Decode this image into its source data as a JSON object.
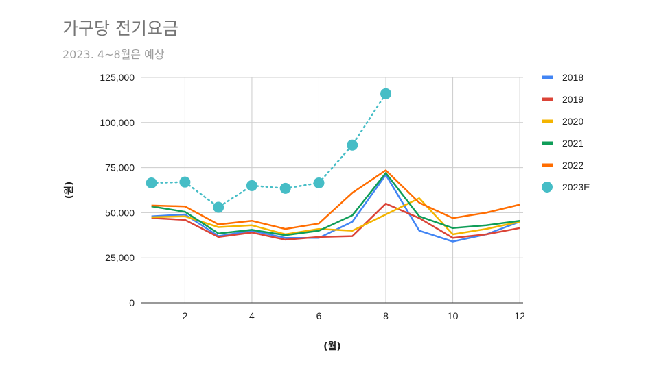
{
  "chart_data": {
    "type": "line",
    "title": "가구당 전기요금",
    "subtitle": "2023. 4~8월은 예상",
    "xlabel": "(월)",
    "ylabel": "(원)",
    "x": [
      1,
      2,
      3,
      4,
      5,
      6,
      7,
      8,
      9,
      10,
      11,
      12
    ],
    "xticks": [
      "2",
      "4",
      "6",
      "8",
      "10",
      "12"
    ],
    "xtick_values": [
      2,
      4,
      6,
      8,
      10,
      12
    ],
    "yticks": [
      "0",
      "25,000",
      "50,000",
      "75,000",
      "100,000",
      "125,000"
    ],
    "ytick_values": [
      0,
      25000,
      50000,
      75000,
      100000,
      125000
    ],
    "xlim": [
      0.7,
      12.1
    ],
    "ylim": [
      0,
      125000
    ],
    "grid": true,
    "legend": "right",
    "series": [
      {
        "name": "2018",
        "color": "#4285f4",
        "style": "line",
        "values": [
          48000,
          49000,
          37000,
          40000,
          36000,
          36000,
          45000,
          71000,
          40000,
          34000,
          38000,
          45000
        ]
      },
      {
        "name": "2019",
        "color": "#db4437",
        "style": "line",
        "values": [
          47000,
          46000,
          36500,
          39000,
          35000,
          36500,
          37000,
          55000,
          47000,
          36000,
          38000,
          41500
        ]
      },
      {
        "name": "2020",
        "color": "#f4b400",
        "style": "line",
        "values": [
          47500,
          48000,
          42000,
          43000,
          38000,
          41000,
          40000,
          49000,
          58000,
          38000,
          41000,
          45000
        ]
      },
      {
        "name": "2021",
        "color": "#0f9d58",
        "style": "line",
        "values": [
          53500,
          50500,
          38500,
          40500,
          37500,
          40000,
          48500,
          72000,
          48000,
          41500,
          43000,
          45500
        ]
      },
      {
        "name": "2022",
        "color": "#ff6d01",
        "style": "line",
        "values": [
          54000,
          53500,
          43500,
          45500,
          41000,
          44000,
          61000,
          73500,
          55500,
          47000,
          50000,
          54500
        ]
      },
      {
        "name": "2023E",
        "color": "#46bdc6",
        "style": "dotted-points",
        "x": [
          1,
          2,
          3,
          4,
          5,
          6,
          7,
          8
        ],
        "values": [
          66500,
          67000,
          53000,
          65000,
          63500,
          66500,
          87500,
          116000
        ]
      }
    ]
  }
}
